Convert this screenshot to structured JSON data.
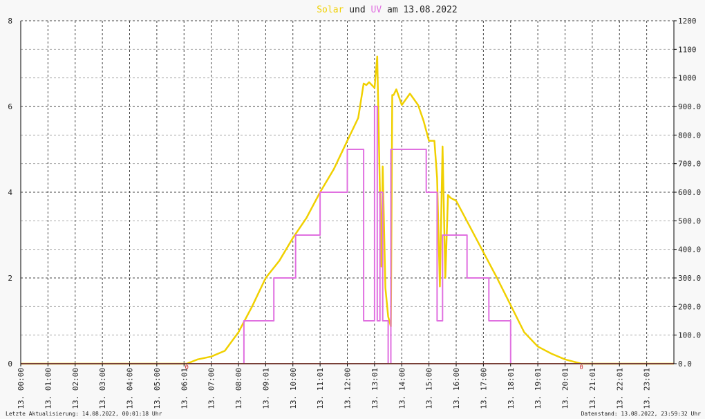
{
  "title": {
    "solar": "Solar",
    "und": "und",
    "uv": "UV",
    "rest": "am 13.08.2022",
    "colors": {
      "solar": "#f0d000",
      "uv": "#e070e0",
      "plain": "#222222"
    }
  },
  "footer": {
    "left": "Letzte Aktualisierung: 14.08.2022, 00:01:18 Uhr",
    "right": "Datenstand: 13.08.2022, 23:59:32 Uhr"
  },
  "chart_data": {
    "type": "line",
    "title": "Solar und UV am 13.08.2022",
    "grid": true,
    "x_range_hours": [
      0,
      24
    ],
    "x_ticks": [
      "13. 00:00",
      "13. 01:00",
      "13. 02:00",
      "13. 03:00",
      "13. 04:00",
      "13. 05:00",
      "13. 06:01",
      "13. 07:00",
      "13. 08:00",
      "13. 09:01",
      "13. 10:00",
      "13. 11:01",
      "13. 12:00",
      "13. 13:01",
      "13. 14:00",
      "13. 15:00",
      "13. 16:00",
      "13. 17:00",
      "13. 18:01",
      "13. 19:01",
      "13. 20:01",
      "13. 21:01",
      "13. 22:01",
      "13. 23:01"
    ],
    "y_left": {
      "ylim": [
        0,
        8
      ],
      "ticks": [
        "0",
        "2",
        "4",
        "6",
        "8"
      ]
    },
    "y_right": {
      "ylim": [
        0,
        1200
      ],
      "ticks": [
        "0.0",
        "100.0",
        "200.0",
        "300.0",
        "400.0",
        "500.0",
        "600.0",
        "700.0",
        "800.0",
        "900.0",
        "1000",
        "1100",
        "1200"
      ]
    },
    "markers": [
      {
        "label": "0",
        "x": 6.1
      },
      {
        "label": "0",
        "x": 20.6
      }
    ],
    "series": [
      {
        "name": "Solar",
        "axis": "right",
        "color": "#f0d000",
        "x": [
          0,
          6.1,
          6.5,
          7,
          7.5,
          8,
          8.5,
          9,
          9.5,
          10,
          10.5,
          11,
          11.5,
          12,
          12.4,
          12.6,
          12.7,
          12.8,
          13.0,
          13.1,
          13.2,
          13.25,
          13.3,
          13.4,
          13.5,
          13.6,
          13.65,
          13.7,
          13.8,
          14.0,
          14.3,
          14.6,
          14.8,
          15.0,
          15.2,
          15.3,
          15.4,
          15.5,
          15.6,
          15.7,
          15.8,
          16.0,
          16.5,
          17.0,
          17.5,
          18.0,
          18.5,
          19.0,
          19.5,
          20.0,
          20.6,
          24
        ],
        "y": [
          0,
          0,
          15,
          25,
          45,
          110,
          200,
          300,
          360,
          440,
          510,
          600,
          680,
          780,
          860,
          980,
          975,
          985,
          965,
          1075,
          600,
          340,
          690,
          265,
          165,
          130,
          940,
          940,
          960,
          905,
          945,
          905,
          850,
          780,
          780,
          650,
          270,
          760,
          300,
          590,
          580,
          570,
          480,
          390,
          300,
          205,
          110,
          60,
          35,
          15,
          0,
          0
        ]
      },
      {
        "name": "UV",
        "axis": "left",
        "color": "#e070e0",
        "x": [
          0,
          8.2,
          8.2,
          9.3,
          9.3,
          10.1,
          10.1,
          11.0,
          11.0,
          12.0,
          12.0,
          12.6,
          12.6,
          13.0,
          13.0,
          13.1,
          13.1,
          13.2,
          13.2,
          13.3,
          13.3,
          13.5,
          13.5,
          13.6,
          13.6,
          13.7,
          13.7,
          14.9,
          14.9,
          15.3,
          15.3,
          15.5,
          15.5,
          16.4,
          16.4,
          17.2,
          17.2,
          18.0,
          18.0,
          24
        ],
        "y": [
          0,
          0,
          1,
          1,
          2,
          2,
          3,
          3,
          4,
          4,
          5,
          5,
          1,
          1,
          6,
          6,
          1,
          1,
          4,
          4,
          1,
          1,
          0,
          0,
          5,
          5,
          5,
          5,
          4,
          4,
          1,
          1,
          3,
          3,
          2,
          2,
          1,
          1,
          0,
          0
        ]
      }
    ]
  }
}
